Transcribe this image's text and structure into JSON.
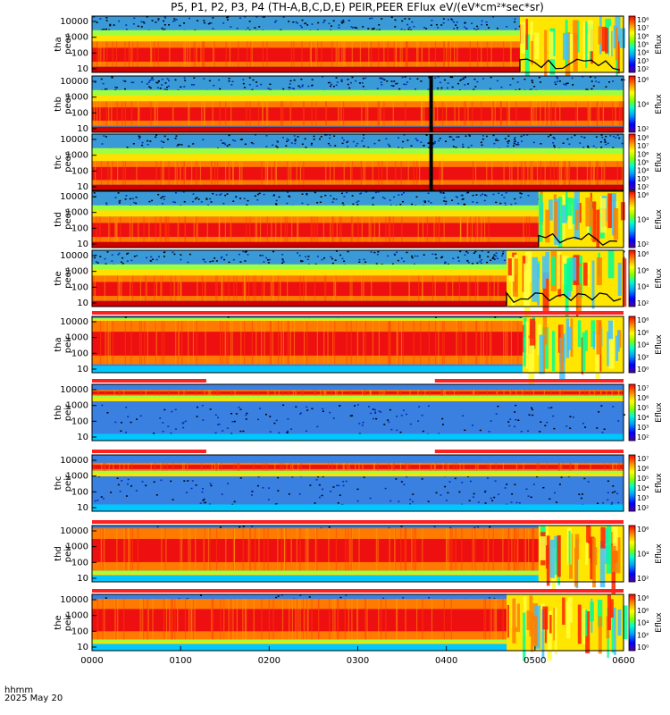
{
  "title": "P5, P1, P2, P3, P4 (TH-A,B,C,D,E) PEIR,PEER EFlux eV/(eV*cm²*sec*sr)",
  "chart_data": {
    "type": "heatmap",
    "x_ticks": [
      "0000",
      "0100",
      "0200",
      "0300",
      "0400",
      "0500",
      "0600"
    ],
    "x_unit_label": "hhmm",
    "date_label": "2025 May 20",
    "panels": [
      {
        "probe": "tha",
        "species": "peer",
        "y_ticks": [
          "10000",
          "1000",
          "100",
          "10"
        ],
        "cb_label": "Eflux",
        "cb_ticks": [
          "10⁸",
          "10⁷",
          "10⁶",
          "10⁵",
          "10⁴",
          "10³",
          "10²"
        ],
        "core": [
          0.1,
          0.55
        ],
        "mid": [
          0.55,
          0.75
        ],
        "activity_start": 0.805,
        "black_line": true,
        "vertical_gap": null,
        "bar_above": false
      },
      {
        "probe": "thb",
        "species": "peer",
        "y_ticks": [
          "10000",
          "1000",
          "100",
          "10"
        ],
        "cb_label": "Eflux",
        "cb_ticks": [
          "10⁶",
          "10⁴",
          "10²"
        ],
        "core": [
          0.12,
          0.55
        ],
        "mid": [
          0.55,
          0.75
        ],
        "activity_start": null,
        "black_line": false,
        "vertical_gap": 0.638,
        "bar_above": false
      },
      {
        "probe": "thc",
        "species": "peer",
        "y_ticks": [
          "10000",
          "1000",
          "100",
          "10"
        ],
        "cb_label": "Eflux",
        "cb_ticks": [
          "10⁸",
          "10⁷",
          "10⁶",
          "10⁵",
          "10⁴",
          "10³",
          "10²"
        ],
        "core": [
          0.1,
          0.52
        ],
        "mid": [
          0.52,
          0.75
        ],
        "activity_start": null,
        "black_line": false,
        "vertical_gap": 0.638,
        "bar_above": false
      },
      {
        "probe": "thd",
        "species": "peer",
        "y_ticks": [
          "10000",
          "1000",
          "100",
          "10"
        ],
        "cb_label": "Eflux",
        "cb_ticks": [
          "10⁶",
          "10⁴",
          "10²"
        ],
        "core": [
          0.1,
          0.55
        ],
        "mid": [
          0.55,
          0.75
        ],
        "activity_start": 0.84,
        "black_line": true,
        "vertical_gap": null,
        "bar_above": false
      },
      {
        "probe": "the",
        "species": "peer",
        "y_ticks": [
          "10000",
          "1000",
          "100",
          "10"
        ],
        "cb_label": "Eflux",
        "cb_ticks": [
          "10⁸",
          "10⁶",
          "10⁴",
          "10²"
        ],
        "core": [
          0.1,
          0.55
        ],
        "mid": [
          0.55,
          0.75
        ],
        "activity_start": 0.78,
        "black_line": true,
        "vertical_gap": null,
        "bar_above": false
      },
      {
        "probe": "tha",
        "species": "peir",
        "y_ticks": [
          "10000",
          "1000",
          "100",
          "10"
        ],
        "cb_label": "Eflux",
        "cb_ticks": [
          "10⁸",
          "10⁶",
          "10⁴",
          "10²",
          "10⁰"
        ],
        "core": [
          0.15,
          0.92
        ],
        "mid": [
          0.92,
          0.97
        ],
        "activity_start": 0.81,
        "black_line": false,
        "vertical_gap": null,
        "bar_above": true
      },
      {
        "probe": "thb",
        "species": "peir",
        "y_ticks": [
          "10000",
          "1000",
          "100",
          "10"
        ],
        "cb_label": "Eflux",
        "cb_ticks": [
          "10⁷",
          "10⁶",
          "10⁵",
          "10⁴",
          "10³",
          "10²"
        ],
        "core": [
          0.8,
          0.9
        ],
        "mid": [
          0.7,
          0.8
        ],
        "activity_start": null,
        "black_line": false,
        "vertical_gap": null,
        "bar_above": true
      },
      {
        "probe": "thc",
        "species": "peir",
        "y_ticks": [
          "10000",
          "1000",
          "100",
          "10"
        ],
        "cb_label": "Eflux",
        "cb_ticks": [
          "10⁷",
          "10⁶",
          "10⁵",
          "10⁴",
          "10³",
          "10²"
        ],
        "core": [
          0.72,
          0.86
        ],
        "mid": [
          0.62,
          0.72
        ],
        "activity_start": null,
        "black_line": false,
        "vertical_gap": null,
        "bar_above": true
      },
      {
        "probe": "thd",
        "species": "peir",
        "y_ticks": [
          "10000",
          "1000",
          "100",
          "10"
        ],
        "cb_label": "Eflux",
        "cb_ticks": [
          "10⁶",
          "10⁴",
          "10²"
        ],
        "core": [
          0.2,
          0.95
        ],
        "mid": [
          0.1,
          0.2
        ],
        "activity_start": 0.84,
        "black_line": false,
        "vertical_gap": null,
        "bar_above": true
      },
      {
        "probe": "the",
        "species": "peir",
        "y_ticks": [
          "10000",
          "1000",
          "100",
          "10"
        ],
        "cb_label": "Eflux",
        "cb_ticks": [
          "10⁸",
          "10⁶",
          "10⁴",
          "10²",
          "10⁰"
        ],
        "core": [
          0.2,
          0.92
        ],
        "mid": [
          0.1,
          0.2
        ],
        "activity_start": 0.78,
        "black_line": false,
        "vertical_gap": null,
        "bar_above": true
      }
    ],
    "colorscale": [
      "#00007f",
      "#0000ff",
      "#00a0ff",
      "#00ffd0",
      "#7fff00",
      "#ffff00",
      "#ff9000",
      "#ff0000",
      "#c80000"
    ]
  }
}
